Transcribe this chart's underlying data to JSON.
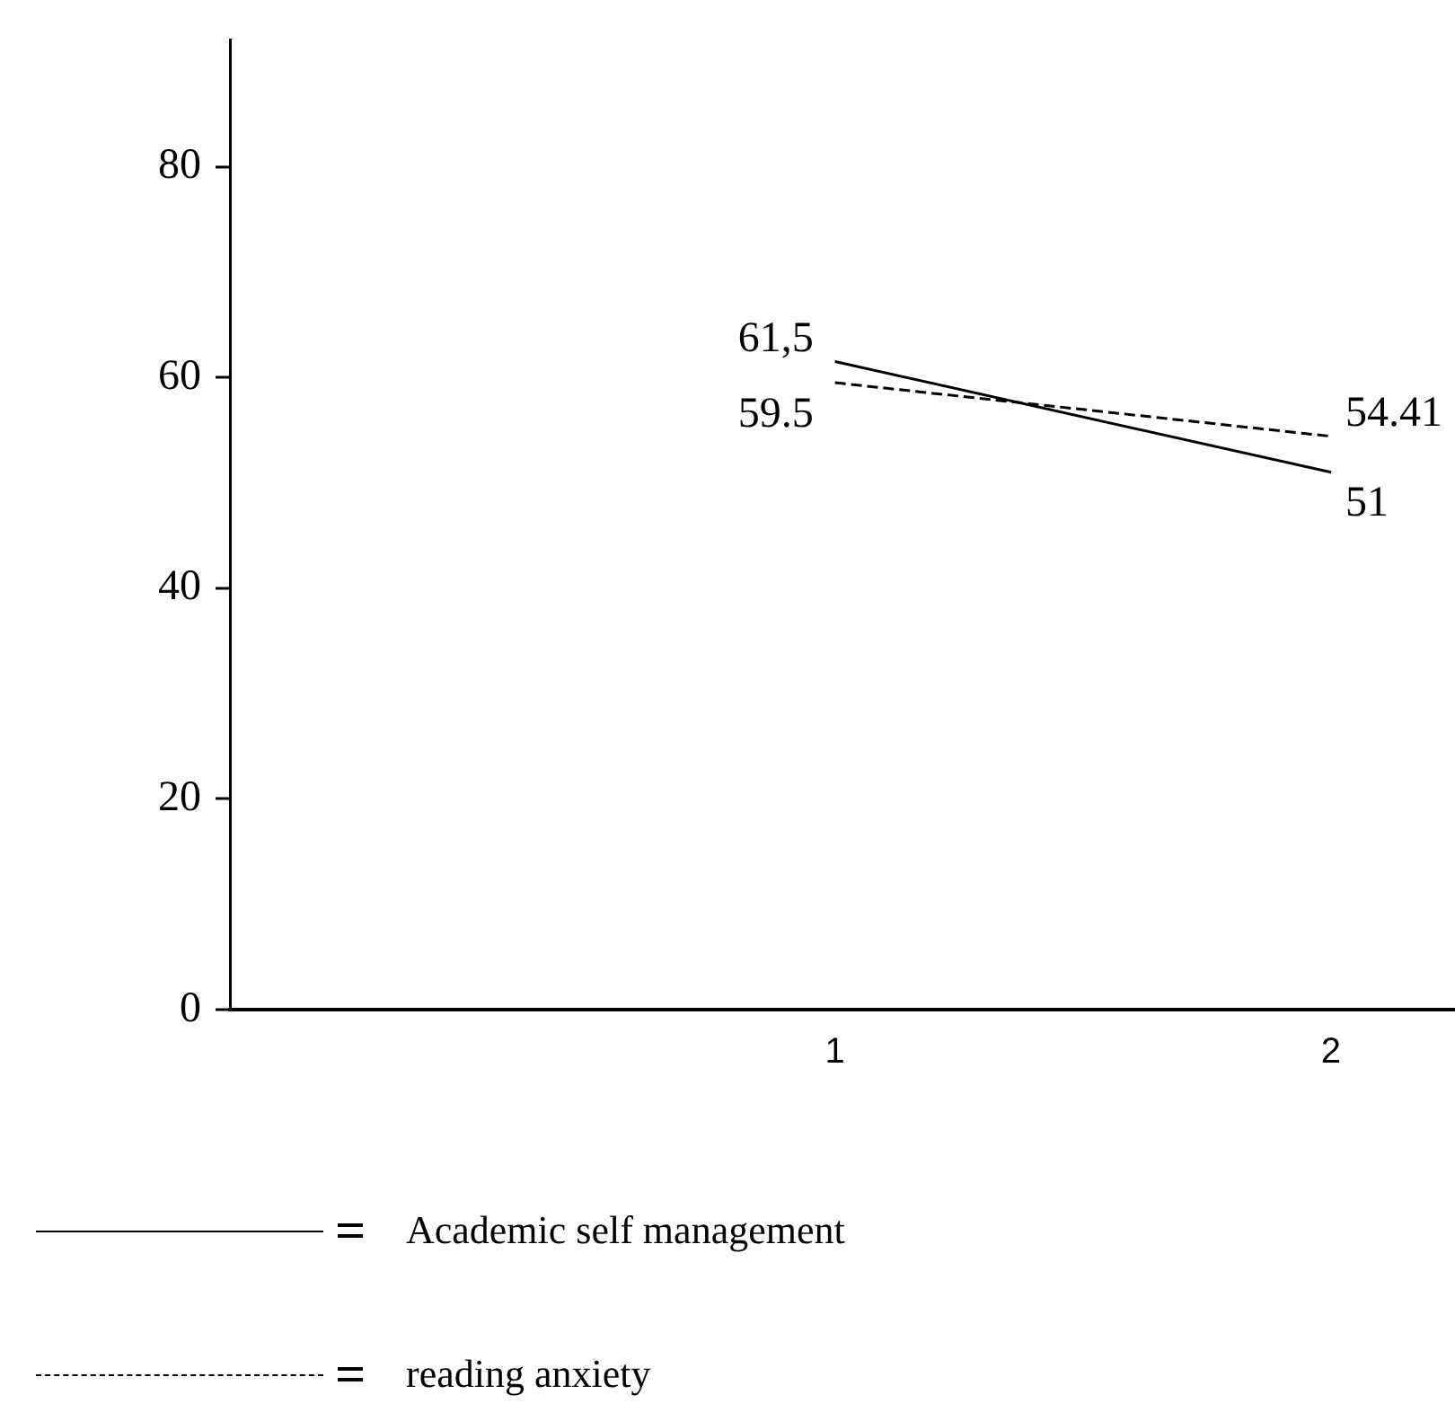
{
  "chart_data": {
    "type": "line",
    "x": [
      1,
      2
    ],
    "series": [
      {
        "name": "Academic self management",
        "color": "#000000",
        "line_style": "solid",
        "values": [
          61.5,
          51
        ],
        "value_labels": [
          "61,5",
          "51"
        ]
      },
      {
        "name": "reading anxiety",
        "color": "#000000",
        "line_style": "dashed",
        "values": [
          59.5,
          54.41
        ],
        "value_labels": [
          "59.5",
          "54.41"
        ]
      }
    ],
    "xlim": [
      -0.22,
      2.25
    ],
    "xticks": [
      1,
      2
    ],
    "ylim": [
      0,
      92
    ],
    "yticks": [
      0,
      20,
      40,
      60,
      80
    ],
    "grid": false,
    "legend": "bottom",
    "marker": "none"
  }
}
